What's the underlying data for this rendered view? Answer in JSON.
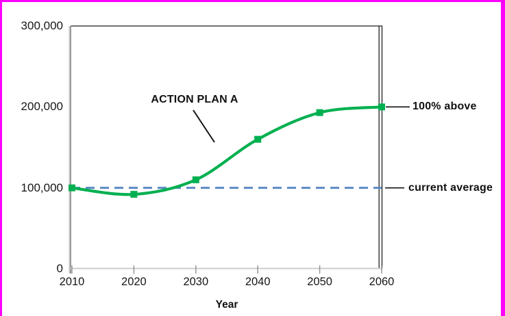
{
  "colors": {
    "frame_magenta": "#ff00ff",
    "series_green": "#00b050",
    "reference_blue": "#5b8ac5",
    "plot_border_dark": "#1f1f1f",
    "axis_gray": "#8f8f8f",
    "axis_light_gray": "#cccccc",
    "text_black": "#111111"
  },
  "chart_data": {
    "type": "line",
    "title": "",
    "xlabel": "Year",
    "ylabel": "",
    "x": [
      2010,
      2020,
      2030,
      2040,
      2050,
      2060
    ],
    "xtick_labels": [
      "2010",
      "2020",
      "2030",
      "2040",
      "2050",
      "2060"
    ],
    "series": [
      {
        "name": "ACTION PLAN A",
        "values": [
          100000,
          92000,
          110000,
          160000,
          193000,
          200000
        ],
        "color": "#00b050",
        "marker": "square",
        "smooth": true
      }
    ],
    "reference_line": {
      "label": "current average",
      "value": 100000,
      "style": "dashed",
      "color": "#5b8ac5"
    },
    "ylim": [
      0,
      300000
    ],
    "yticks": [
      0,
      100000,
      200000,
      300000
    ],
    "ytick_labels": [
      "0",
      "100,000",
      "200,000",
      "300,000"
    ],
    "grid": false,
    "legend": "none",
    "annotations": [
      {
        "text": "ACTION PLAN A",
        "type": "callout-to-curve"
      },
      {
        "text": "100% above",
        "type": "right-edge-label",
        "at_value": 200000
      },
      {
        "text": "current average",
        "type": "right-edge-label",
        "at_value": 100000
      }
    ]
  }
}
